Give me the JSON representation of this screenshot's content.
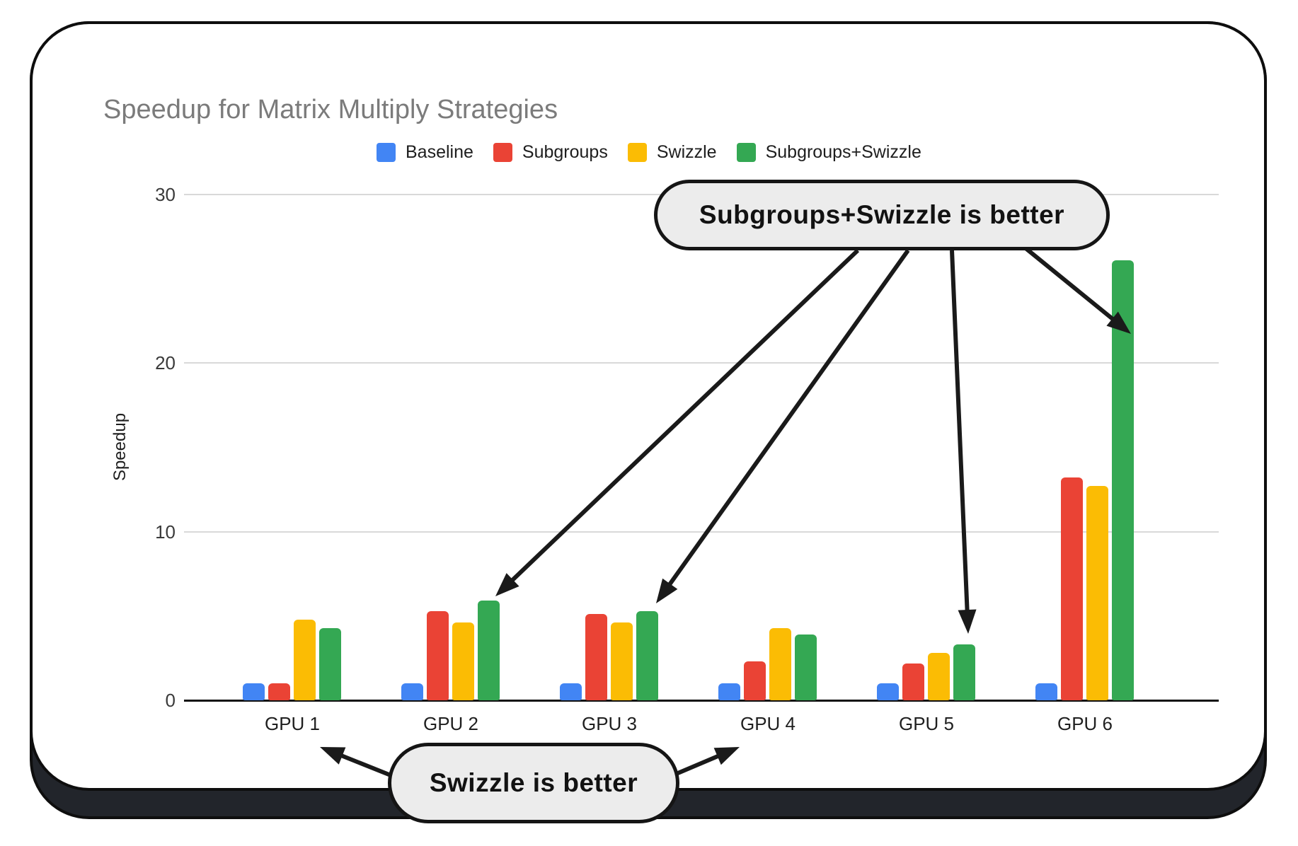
{
  "chart_data": {
    "type": "bar",
    "title": "Speedup for Matrix Multiply Strategies",
    "ylabel": "Speedup",
    "xlabel": "",
    "categories": [
      "GPU 1",
      "GPU 2",
      "GPU 3",
      "GPU 4",
      "GPU 5",
      "GPU 6"
    ],
    "series": [
      {
        "name": "Baseline",
        "color": "#4285F4",
        "values": [
          1.0,
          1.0,
          1.0,
          1.0,
          1.0,
          1.0
        ]
      },
      {
        "name": "Subgroups",
        "color": "#EA4335",
        "values": [
          1.0,
          5.3,
          5.1,
          2.3,
          2.2,
          13.2
        ]
      },
      {
        "name": "Swizzle",
        "color": "#FBBC04",
        "values": [
          4.8,
          4.6,
          4.6,
          4.3,
          2.8,
          12.7
        ]
      },
      {
        "name": "Subgroups+Swizzle",
        "color": "#34A853",
        "values": [
          4.3,
          5.9,
          5.3,
          3.9,
          3.3,
          26.1
        ]
      }
    ],
    "ylim": [
      0,
      30
    ],
    "yticks": [
      0,
      10,
      20,
      30
    ],
    "grid": true,
    "legend_position": "top"
  },
  "annotations": {
    "top_callout": {
      "label": "Subgroups+Swizzle is better",
      "fill": "#ECECEC",
      "border": "#151515",
      "points_to": [
        "GPU 2 Subgroups+Swizzle bar",
        "GPU 3 Subgroups+Swizzle bar",
        "GPU 5 Subgroups+Swizzle bar",
        "GPU 6 Subgroups+Swizzle bar"
      ]
    },
    "bottom_callout": {
      "label": "Swizzle is better",
      "fill": "#ECECEC",
      "border": "#151515",
      "points_to": [
        "GPU 1 group",
        "GPU 4 group"
      ]
    }
  },
  "colors": {
    "card_band": "#22252b",
    "card_border": "#0e0e0e",
    "gridline": "#d9d9d9",
    "axis": "#111111",
    "title_text": "#7b7b7b",
    "arrow": "#1a1a1a"
  }
}
